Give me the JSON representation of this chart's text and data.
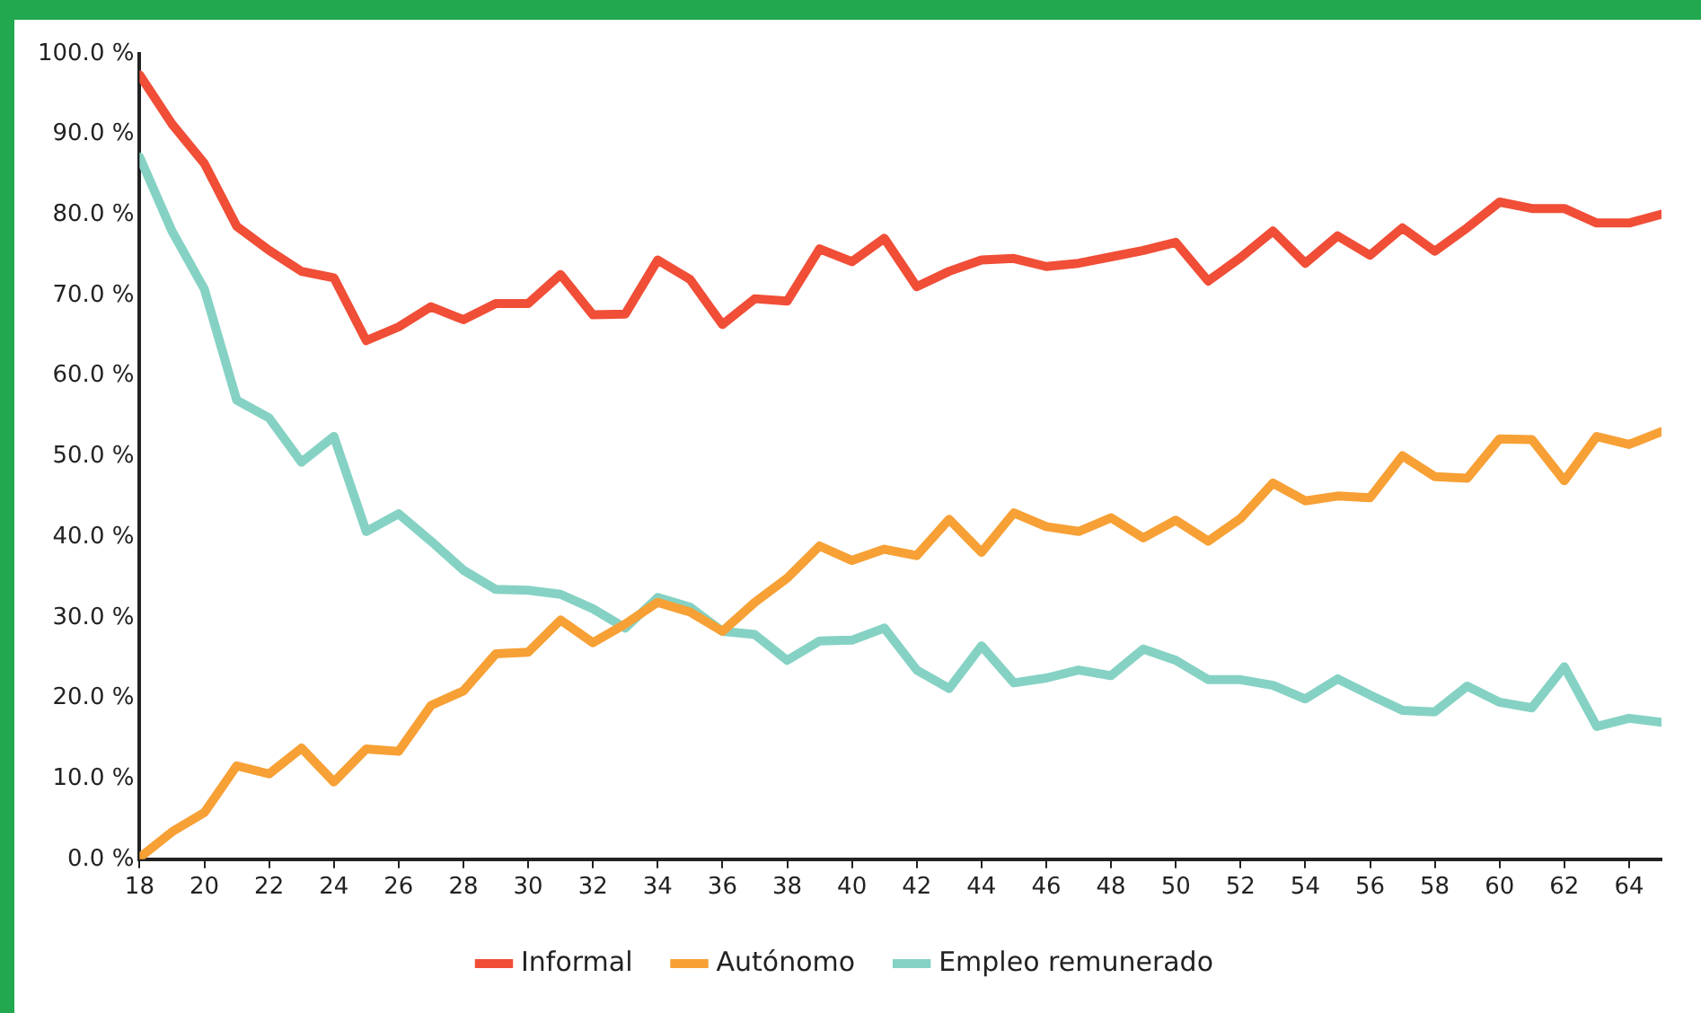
{
  "chart_data": {
    "type": "line",
    "x": [
      18,
      19,
      20,
      21,
      22,
      23,
      24,
      25,
      26,
      27,
      28,
      29,
      30,
      31,
      32,
      33,
      34,
      35,
      36,
      37,
      38,
      39,
      40,
      41,
      42,
      43,
      44,
      45,
      46,
      47,
      48,
      49,
      50,
      51,
      52,
      53,
      54,
      55,
      56,
      57,
      58,
      59,
      60,
      61,
      62,
      63,
      64,
      65
    ],
    "series": [
      {
        "name": "Informal",
        "color": "#f04e37",
        "values": [
          97.4,
          91.3,
          86.4,
          78.6,
          75.6,
          73.0,
          72.2,
          64.4,
          66.1,
          68.6,
          67.0,
          69.0,
          69.0,
          72.6,
          67.6,
          67.7,
          74.4,
          72.0,
          66.4,
          69.6,
          69.3,
          75.8,
          74.2,
          77.1,
          71.1,
          73.0,
          74.4,
          74.6,
          73.6,
          74.0,
          74.8,
          75.6,
          76.6,
          71.8,
          74.7,
          78.0,
          74.0,
          77.4,
          75.0,
          78.4,
          75.5,
          78.4,
          81.6,
          80.8,
          80.8,
          79.0,
          79.0,
          80.1
        ]
      },
      {
        "name": "Autónomo",
        "color": "#f7a035",
        "values": [
          0.2,
          3.4,
          5.8,
          11.6,
          10.6,
          13.8,
          9.6,
          13.7,
          13.4,
          19.1,
          20.9,
          25.5,
          25.7,
          29.7,
          26.9,
          29.2,
          31.9,
          30.7,
          28.3,
          31.9,
          34.9,
          38.9,
          37.1,
          38.5,
          37.7,
          42.2,
          38.1,
          43.0,
          41.3,
          40.7,
          42.4,
          39.9,
          42.1,
          39.5,
          42.3,
          46.7,
          44.5,
          45.1,
          44.9,
          50.1,
          47.5,
          47.3,
          52.2,
          52.1,
          47.0,
          52.5,
          51.5,
          53.1
        ]
      },
      {
        "name": "Empleo remunerado",
        "color": "#85d2c4",
        "values": [
          87.2,
          78.0,
          70.8,
          57.0,
          54.8,
          49.3,
          52.5,
          40.7,
          42.9,
          39.5,
          35.9,
          33.5,
          33.4,
          32.9,
          31.1,
          28.7,
          32.5,
          31.3,
          28.3,
          27.9,
          24.7,
          27.1,
          27.2,
          28.7,
          23.5,
          21.2,
          26.5,
          21.9,
          22.5,
          23.5,
          22.8,
          26.1,
          24.7,
          22.3,
          22.3,
          21.6,
          19.9,
          22.4,
          20.4,
          18.5,
          18.3,
          21.5,
          19.5,
          18.8,
          23.9,
          16.5,
          17.5,
          17.0
        ]
      }
    ],
    "xlim": [
      18,
      65
    ],
    "xticks": [
      18,
      20,
      22,
      24,
      26,
      28,
      30,
      32,
      34,
      36,
      38,
      40,
      42,
      44,
      46,
      48,
      50,
      52,
      54,
      56,
      58,
      60,
      62,
      64
    ],
    "ylim": [
      0,
      100
    ],
    "yticks": [
      {
        "value": 0,
        "label": "0.0 %"
      },
      {
        "value": 10,
        "label": "10.0 %"
      },
      {
        "value": 20,
        "label": "20.0 %"
      },
      {
        "value": 30,
        "label": "30.0 %"
      },
      {
        "value": 40,
        "label": "40.0 %"
      },
      {
        "value": 50,
        "label": "50.0 %"
      },
      {
        "value": 60,
        "label": "60.0 %"
      },
      {
        "value": 70,
        "label": "70.0 %"
      },
      {
        "value": 80,
        "label": "80.0 %"
      },
      {
        "value": 90,
        "label": "90.0 %"
      },
      {
        "value": 100,
        "label": "100.0 %"
      }
    ],
    "grid": false,
    "legend": "bottom",
    "marker": "none",
    "line_style": "solid"
  }
}
